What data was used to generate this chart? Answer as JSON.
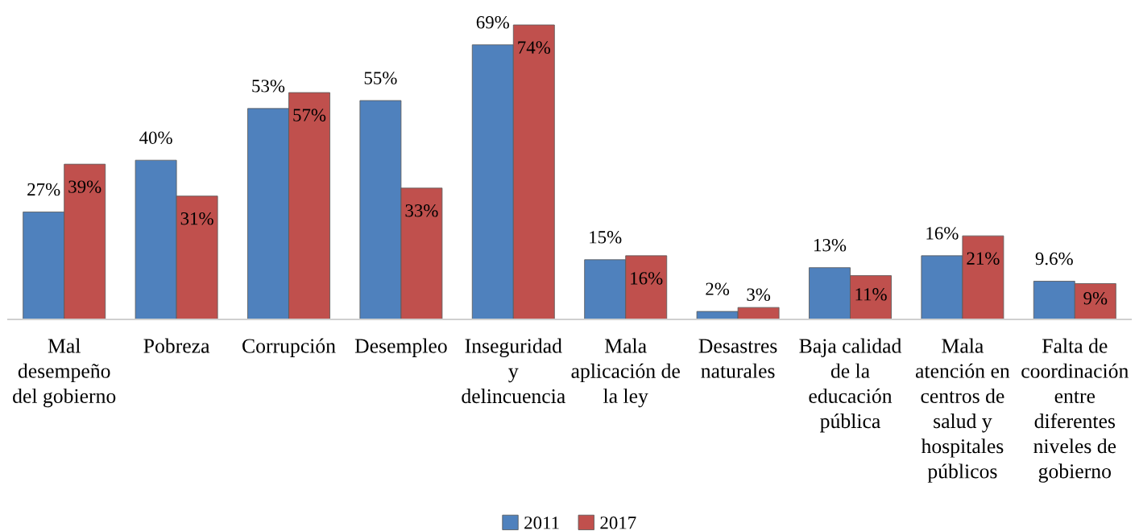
{
  "chart_data": {
    "type": "bar",
    "categories": [
      "Mal\ndesempeño\ndel gobierno",
      "Pobreza",
      "Corrupción",
      "Desempleo",
      "Inseguridad\ny\ndelincuencia",
      "Mala\naplicación de\nla ley",
      "Desastres\nnaturales",
      "Baja calidad\nde la\neducación\npública",
      "Mala\natención en\ncentros de\nsalud y\nhospitales\npúblicos",
      "Falta de\ncoordinación\nentre\ndiferentes\nniveles de\ngobierno"
    ],
    "series": [
      {
        "name": "2011",
        "color": "#4f81bd",
        "values": [
          27,
          40,
          53,
          55,
          69,
          15,
          2,
          13,
          16,
          9.6
        ],
        "value_labels": [
          "27%",
          "40%",
          "53%",
          "55%",
          "69%",
          "15%",
          "2%",
          "13%",
          "16%",
          "9.6%"
        ]
      },
      {
        "name": "2017",
        "color": "#c0504d",
        "values": [
          39,
          31,
          57,
          33,
          74,
          16,
          3,
          11,
          21,
          9
        ],
        "value_labels": [
          "39%",
          "31%",
          "57%",
          "33%",
          "74%",
          "16%",
          "3%",
          "11%",
          "21%",
          "9%"
        ]
      }
    ],
    "legend": "bottom",
    "grid": false
  }
}
